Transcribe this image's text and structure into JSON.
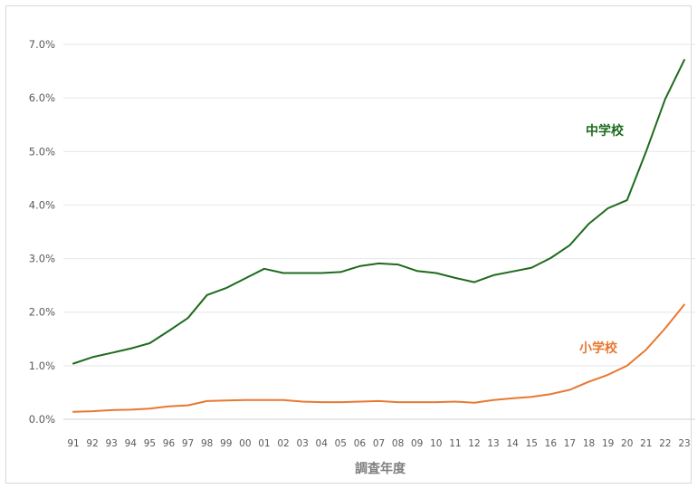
{
  "chart_data": {
    "type": "line",
    "title": "",
    "xlabel": "調査年度",
    "ylabel": "",
    "categories": [
      "91",
      "92",
      "93",
      "94",
      "95",
      "96",
      "97",
      "98",
      "99",
      "00",
      "01",
      "02",
      "03",
      "04",
      "05",
      "06",
      "07",
      "08",
      "09",
      "10",
      "11",
      "12",
      "13",
      "14",
      "15",
      "16",
      "17",
      "18",
      "19",
      "20",
      "21",
      "22",
      "23"
    ],
    "y_ticks": [
      "0.0%",
      "1.0%",
      "2.0%",
      "3.0%",
      "4.0%",
      "5.0%",
      "6.0%",
      "7.0%"
    ],
    "ylim": [
      0,
      7
    ],
    "grid": true,
    "series": [
      {
        "name": "中学校",
        "color": "#1e6b1e",
        "values": [
          1.04,
          1.16,
          1.24,
          1.32,
          1.42,
          1.65,
          1.89,
          2.32,
          2.45,
          2.63,
          2.81,
          2.73,
          2.73,
          2.73,
          2.75,
          2.86,
          2.91,
          2.89,
          2.77,
          2.73,
          2.64,
          2.56,
          2.69,
          2.76,
          2.83,
          3.01,
          3.25,
          3.65,
          3.94,
          4.09,
          5.0,
          5.98,
          6.71
        ]
      },
      {
        "name": "小学校",
        "color": "#e87830",
        "values": [
          0.14,
          0.15,
          0.17,
          0.18,
          0.2,
          0.24,
          0.26,
          0.34,
          0.35,
          0.36,
          0.36,
          0.36,
          0.33,
          0.32,
          0.32,
          0.33,
          0.34,
          0.32,
          0.32,
          0.32,
          0.33,
          0.31,
          0.36,
          0.39,
          0.42,
          0.47,
          0.55,
          0.7,
          0.83,
          1.0,
          1.3,
          1.7,
          2.14
        ]
      }
    ]
  }
}
